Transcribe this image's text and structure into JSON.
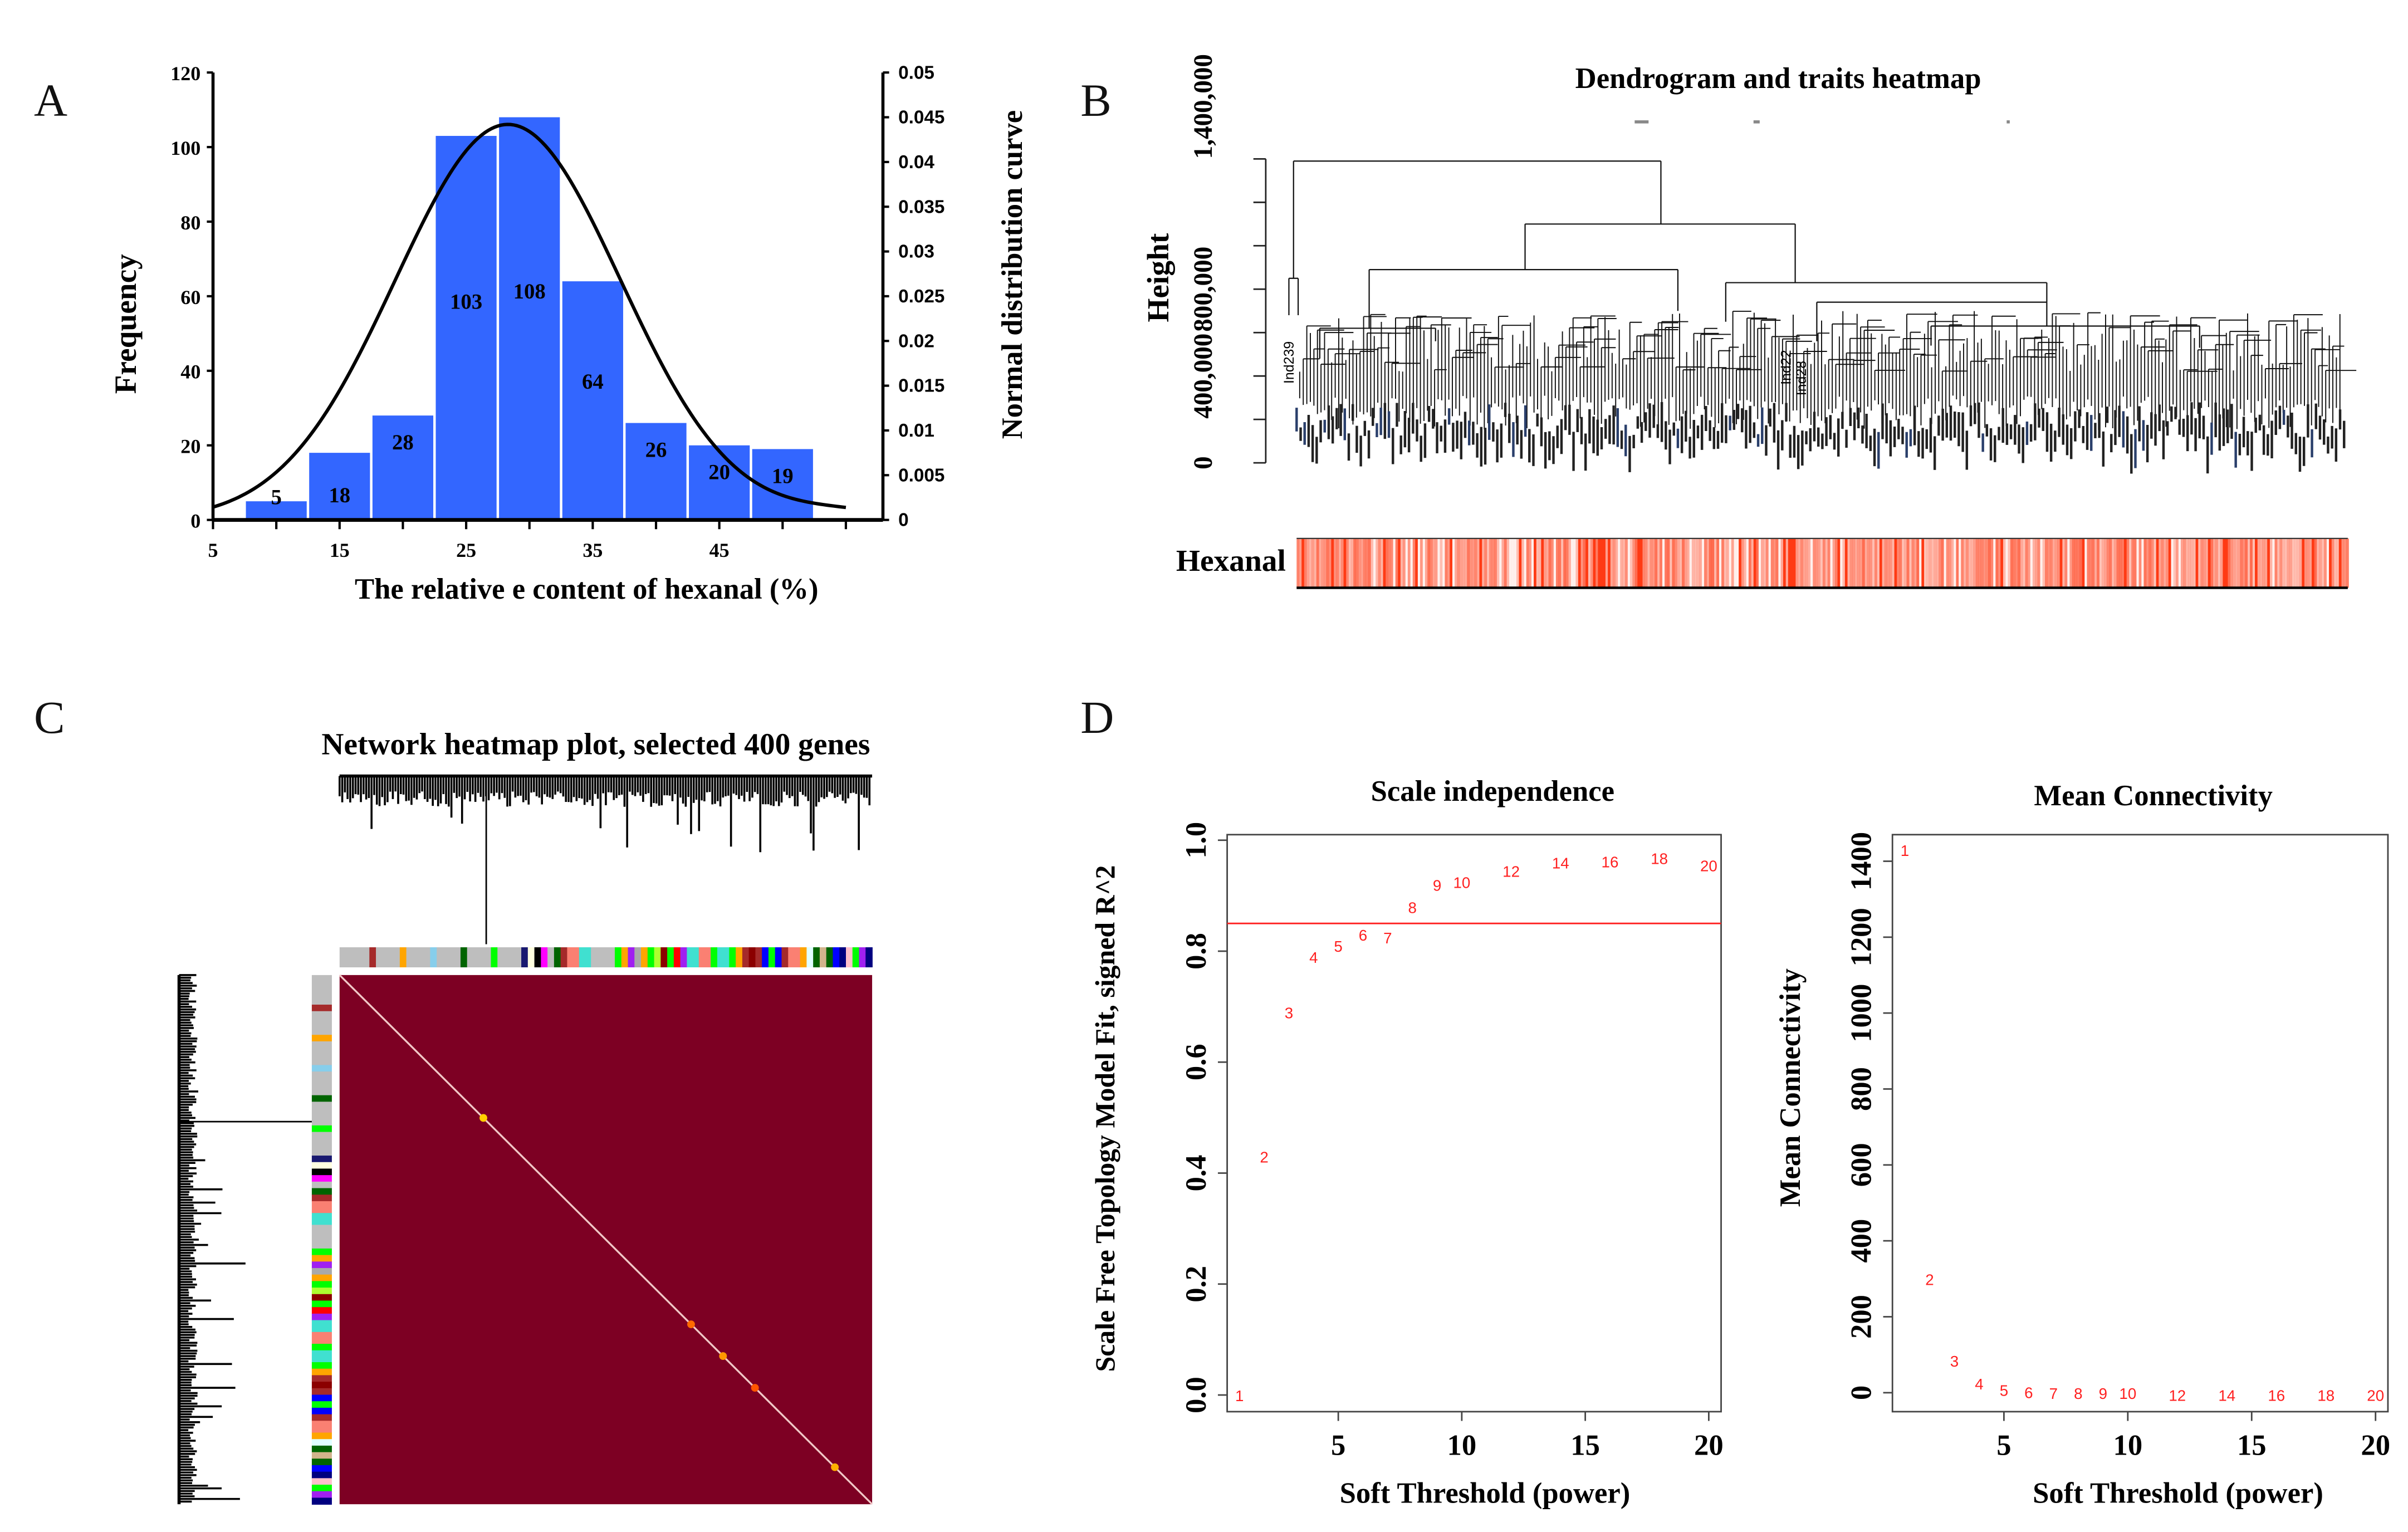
{
  "panels": {
    "A": "A",
    "B": "B",
    "C": "C",
    "D": "D"
  },
  "chart_data": [
    {
      "id": "A",
      "type": "bar",
      "title": "",
      "xlabel": "The relative e content of hexanal (%)",
      "ylabel": "Frequency",
      "y2label": "Normal distribution curve",
      "bar_color": "#3366FF",
      "bin_centers": [
        10,
        15,
        20,
        25,
        30,
        35,
        40,
        45,
        50
      ],
      "bin_width": 5,
      "values": [
        5,
        18,
        28,
        103,
        108,
        64,
        26,
        20,
        19
      ],
      "data_labels": [
        "5",
        "18",
        "28",
        "103",
        "108",
        "64",
        "26",
        "20",
        "19"
      ],
      "xlim": [
        5,
        55
      ],
      "x_ticks": [
        5,
        10,
        15,
        20,
        25,
        30,
        35,
        40,
        45,
        50,
        55
      ],
      "x_tick_labels": [
        "5",
        "15",
        "25",
        "35",
        "45"
      ],
      "x_tick_label_values": [
        5,
        15,
        25,
        35,
        45
      ],
      "ylim": [
        0,
        120
      ],
      "y_ticks": [
        "0",
        "20",
        "40",
        "60",
        "80",
        "100",
        "120"
      ],
      "y2lim": [
        0,
        0.05
      ],
      "y2_ticks": [
        "0",
        "0.005",
        "0.01",
        "0.015",
        "0.02",
        "0.025",
        "0.03",
        "0.035",
        "0.04",
        "0.045",
        "0.05"
      ],
      "curve": {
        "name": "Normal distribution curve",
        "type": "line",
        "mean": 28.3,
        "peak_density": 0.0442,
        "x_range": [
          5,
          55
        ],
        "sd": 8.9
      }
    },
    {
      "id": "B",
      "type": "dendrogram",
      "title": "Dendrogram and traits heatmap",
      "ylabel": "Height",
      "y_tick_labels": [
        "0",
        "400,000",
        "800,000",
        "1,400,000"
      ],
      "y_tick_label_values": [
        0,
        400000,
        800000,
        1400000
      ],
      "ylim": [
        0,
        1400000
      ],
      "visible_leaf_labels": [
        "Ind239",
        "Ind22",
        "Ind28"
      ],
      "trait_row_label": "Hexanal",
      "trait_colors": [
        "#ffffff",
        "#ff3a14"
      ]
    },
    {
      "id": "C",
      "type": "heatmap",
      "title": "Network heatmap plot, selected 400 genes",
      "n_genes": 400,
      "background_color": "#7D0023",
      "module_colors_top": [
        "grey",
        "brown",
        "grey",
        "orange",
        "grey",
        "skyblue",
        "grey",
        "darkgreen",
        "grey",
        "green",
        "grey",
        "midnightblue",
        "lightyellow",
        "black",
        "magenta",
        "grey",
        "darkgreen",
        "brown",
        "salmon",
        "turquoise",
        "grey",
        "green",
        "orange",
        "purple",
        "darkgrey",
        "orange",
        "green",
        "greenyellow",
        "darkred",
        "green",
        "red",
        "purple",
        "turquoise",
        "salmon",
        "green",
        "turquoise",
        "green",
        "orange",
        "brown",
        "darkred",
        "brown",
        "blue",
        "green",
        "blue",
        "brown",
        "salmon",
        "orange",
        "lightcyan",
        "darkgreen",
        "tan",
        "darkgreen",
        "blue",
        "navy",
        "pink",
        "green",
        "purple",
        "navy"
      ]
    },
    {
      "id": "D1",
      "type": "scatter",
      "title": "Scale independence",
      "xlabel": "Soft Threshold (power)",
      "ylabel": "Scale Free Topology Model Fit, signed R^2",
      "xlim": [
        0.5,
        20.5
      ],
      "ylim": [
        -0.03,
        1.01
      ],
      "x_ticks": [
        "5",
        "10",
        "15",
        "20"
      ],
      "y_ticks": [
        "0.0",
        "0.2",
        "0.4",
        "0.6",
        "0.8",
        "1.0"
      ],
      "hline": 0.85,
      "point_color": "#ff2020",
      "points": [
        {
          "label": "1",
          "x": 1,
          "y": 0.0
        },
        {
          "label": "2",
          "x": 2,
          "y": 0.43
        },
        {
          "label": "3",
          "x": 3,
          "y": 0.69
        },
        {
          "label": "4",
          "x": 4,
          "y": 0.79
        },
        {
          "label": "5",
          "x": 5,
          "y": 0.81
        },
        {
          "label": "6",
          "x": 6,
          "y": 0.83
        },
        {
          "label": "7",
          "x": 7,
          "y": 0.825
        },
        {
          "label": "8",
          "x": 8,
          "y": 0.88
        },
        {
          "label": "9",
          "x": 9,
          "y": 0.92
        },
        {
          "label": "10",
          "x": 10,
          "y": 0.925
        },
        {
          "label": "12",
          "x": 12,
          "y": 0.945
        },
        {
          "label": "14",
          "x": 14,
          "y": 0.96
        },
        {
          "label": "16",
          "x": 16,
          "y": 0.962
        },
        {
          "label": "18",
          "x": 18,
          "y": 0.968
        },
        {
          "label": "20",
          "x": 20,
          "y": 0.955
        }
      ]
    },
    {
      "id": "D2",
      "type": "scatter",
      "title": "Mean Connectivity",
      "xlabel": "Soft Threshold (power)",
      "ylabel": "Mean Connectivity",
      "xlim": [
        0.5,
        20.5
      ],
      "ylim": [
        -50,
        1470
      ],
      "x_ticks": [
        "5",
        "10",
        "15",
        "20"
      ],
      "y_ticks": [
        "0",
        "200",
        "400",
        "600",
        "800",
        "1000",
        "1200",
        "1400"
      ],
      "point_color": "#ff2020",
      "points": [
        {
          "label": "1",
          "x": 1,
          "y": 1430
        },
        {
          "label": "2",
          "x": 2,
          "y": 300
        },
        {
          "label": "3",
          "x": 3,
          "y": 85
        },
        {
          "label": "4",
          "x": 4,
          "y": 25
        },
        {
          "label": "5",
          "x": 5,
          "y": 8
        },
        {
          "label": "6",
          "x": 6,
          "y": 2
        },
        {
          "label": "7",
          "x": 7,
          "y": 0
        },
        {
          "label": "8",
          "x": 8,
          "y": 0
        },
        {
          "label": "9",
          "x": 9,
          "y": 0
        },
        {
          "label": "10",
          "x": 10,
          "y": 0
        },
        {
          "label": "12",
          "x": 12,
          "y": -5
        },
        {
          "label": "14",
          "x": 14,
          "y": -5
        },
        {
          "label": "16",
          "x": 16,
          "y": -5
        },
        {
          "label": "18",
          "x": 18,
          "y": -5
        },
        {
          "label": "20",
          "x": 20,
          "y": -5
        }
      ]
    }
  ]
}
